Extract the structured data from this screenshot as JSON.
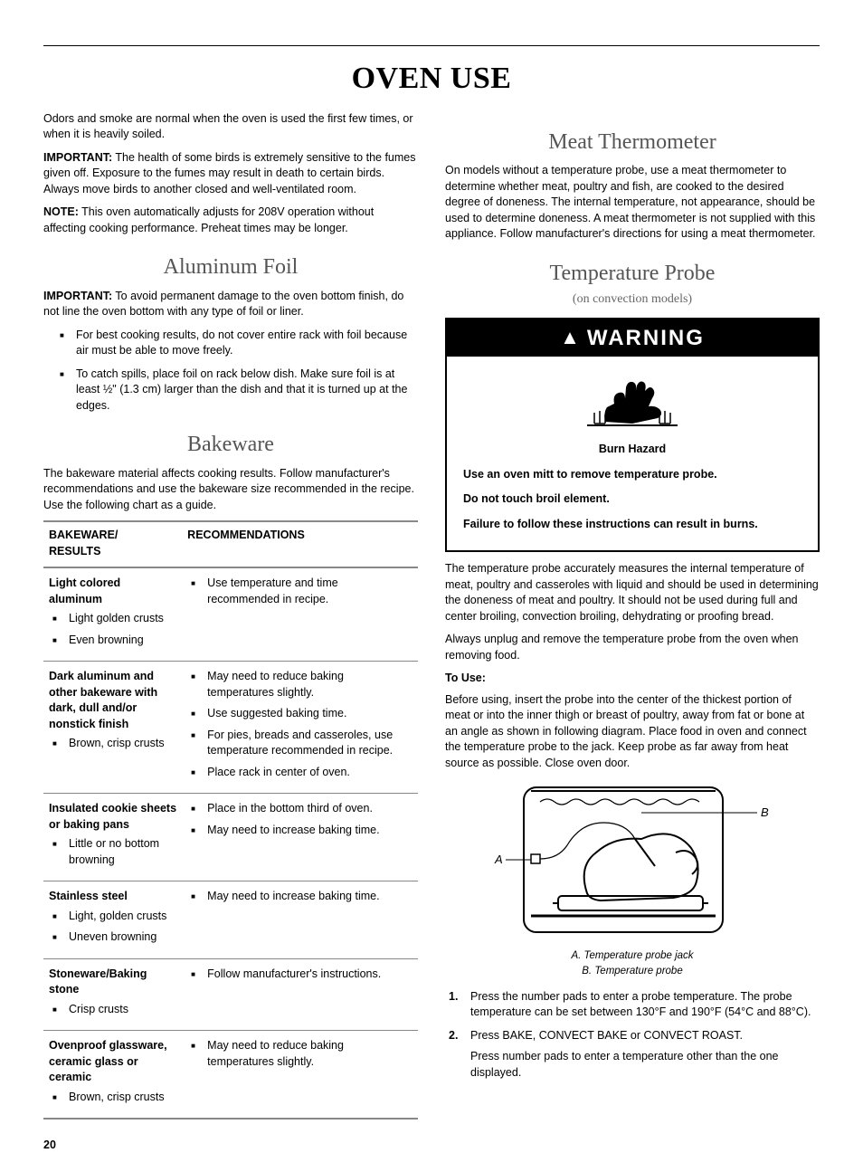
{
  "page_title": "OVEN USE",
  "page_number": "20",
  "intro": {
    "p1": "Odors and smoke are normal when the oven is used the first few times, or when it is heavily soiled.",
    "p2_label": "IMPORTANT:",
    "p2": " The health of some birds is extremely sensitive to the fumes given off. Exposure to the fumes may result in death to certain birds. Always move birds to another closed and well-ventilated room.",
    "p3_label": "NOTE:",
    "p3": " This oven automatically adjusts for 208V operation without affecting cooking performance. Preheat times may be longer."
  },
  "aluminum": {
    "heading": "Aluminum Foil",
    "p_label": "IMPORTANT:",
    "p": " To avoid permanent damage to the oven bottom finish, do not line the oven bottom with any type of foil or liner.",
    "bullets": [
      "For best cooking results, do not cover entire rack with foil because air must be able to move freely.",
      "To catch spills, place foil on rack below dish. Make sure foil is at least ½\" (1.3 cm) larger than the dish and that it is turned up at the edges."
    ]
  },
  "bakeware": {
    "heading": "Bakeware",
    "intro": "The bakeware material affects cooking results. Follow manufacturer's recommendations and use the bakeware size recommended in the recipe. Use the following chart as a guide.",
    "col1": "BAKEWARE/\nRESULTS",
    "col2": "RECOMMENDATIONS",
    "rows": [
      {
        "title": "Light colored aluminum",
        "results": [
          "Light golden crusts",
          "Even browning"
        ],
        "recs": [
          "Use temperature and time recommended in recipe."
        ]
      },
      {
        "title": "Dark aluminum and other bakeware with dark, dull and/or nonstick finish",
        "results": [
          "Brown, crisp crusts"
        ],
        "recs": [
          "May need to reduce baking temperatures slightly.",
          "Use suggested baking time.",
          "For pies, breads and casseroles, use temperature recommended in recipe.",
          "Place rack in center of oven."
        ]
      },
      {
        "title": "Insulated cookie sheets or baking pans",
        "results": [
          "Little or no bottom browning"
        ],
        "recs": [
          "Place in the bottom third of oven.",
          "May need to increase baking time."
        ]
      },
      {
        "title": "Stainless steel",
        "results": [
          "Light, golden crusts",
          "Uneven browning"
        ],
        "recs": [
          "May need to increase baking time."
        ]
      },
      {
        "title": "Stoneware/Baking stone",
        "results": [
          "Crisp crusts"
        ],
        "recs": [
          "Follow manufacturer's instructions."
        ]
      },
      {
        "title": "Ovenproof glassware, ceramic glass or ceramic",
        "results": [
          "Brown, crisp crusts"
        ],
        "recs": [
          "May need to reduce baking temperatures slightly."
        ]
      }
    ]
  },
  "meat_therm": {
    "heading": "Meat Thermometer",
    "p": "On models without a temperature probe, use a meat thermometer to determine whether meat, poultry and fish, are cooked to the desired degree of doneness. The internal temperature, not appearance, should be used to determine doneness. A meat thermometer is not supplied with this appliance. Follow manufacturer's directions for using a meat thermometer."
  },
  "temp_probe": {
    "heading": "Temperature Probe",
    "subtitle": "(on convection models)",
    "warning_label": "WARNING",
    "burn_hazard": "Burn Hazard",
    "w1": "Use an oven mitt to remove temperature probe.",
    "w2": "Do not touch broil element.",
    "w3": "Failure to follow these instructions can result in burns.",
    "p1": "The temperature probe accurately measures the internal temperature of meat, poultry and casseroles with liquid and should be used in determining the doneness of meat and poultry. It should not be used during full and center broiling, convection broiling, dehydrating or proofing bread.",
    "p2": "Always unplug and remove the temperature probe from the oven when removing food.",
    "to_use": "To Use:",
    "p3": "Before using, insert the probe into the center of the thickest portion of meat or into the inner thigh or breast of poultry, away from fat or bone at an angle as shown in following diagram. Place food in oven and connect the temperature probe to the jack. Keep probe as far away from heat source as possible. Close oven door.",
    "caption_a": "A. Temperature probe jack",
    "caption_b": "B. Temperature probe",
    "label_a": "A",
    "label_b": "B",
    "steps": [
      "Press the number pads to enter a probe temperature. The probe temperature can be set between 130°F and 190°F (54°C and 88°C).",
      "Press BAKE, CONVECT BAKE or CONVECT ROAST."
    ],
    "step2_extra": "Press number pads to enter a temperature other than the one displayed."
  }
}
